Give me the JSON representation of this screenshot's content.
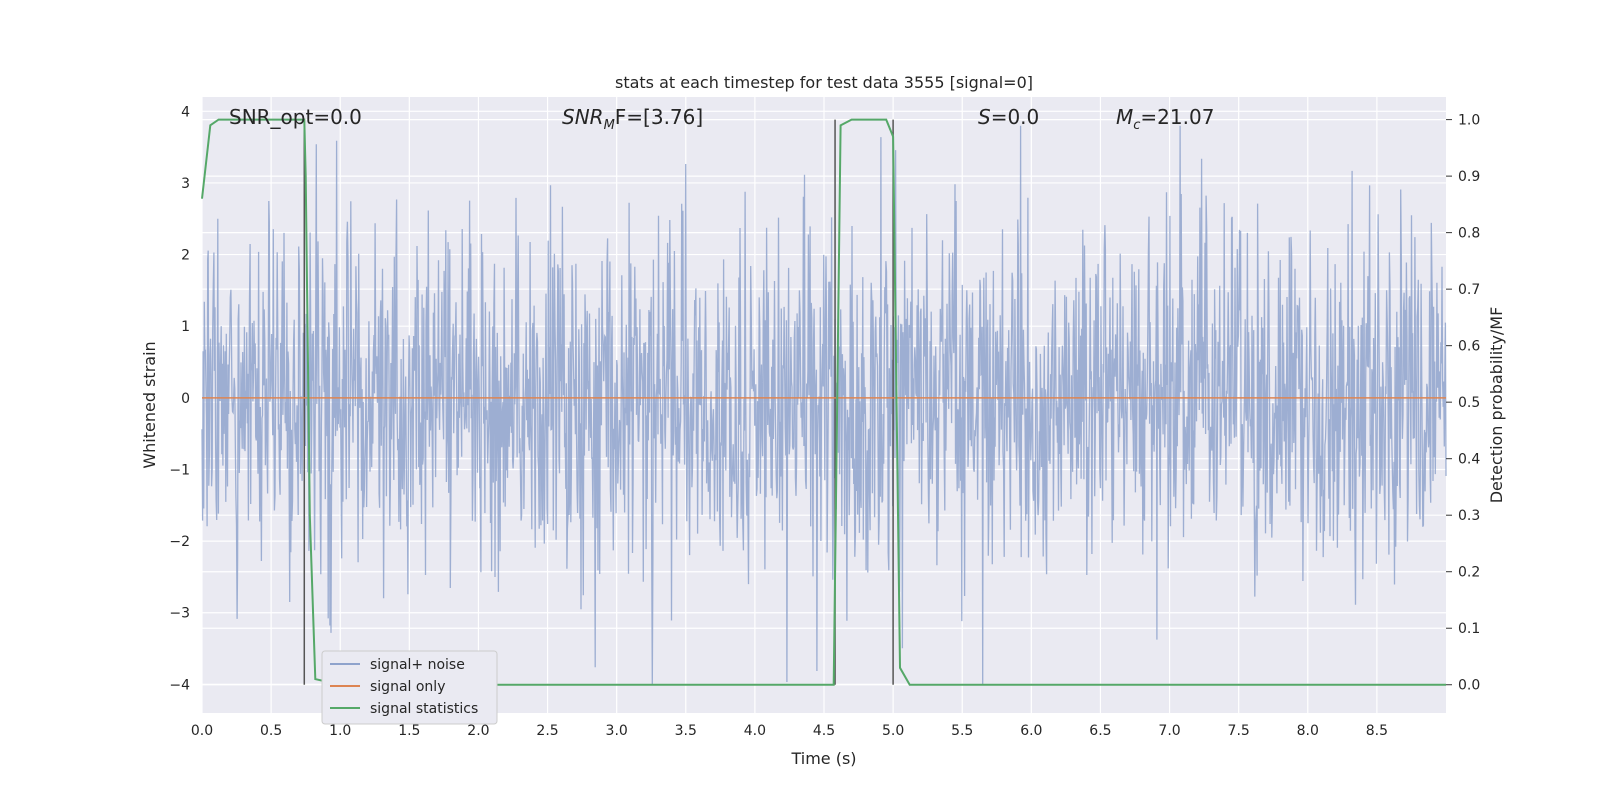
{
  "chart_data": {
    "type": "line",
    "title": "stats at each timestep for test data 3555 [signal=0]",
    "xlabel": "Time (s)",
    "ylabel_left": "Whitened strain",
    "ylabel_right": "Detection probability/MF",
    "xlim": [
      0.0,
      9.0
    ],
    "ylim_left": [
      -4.4,
      4.2
    ],
    "ylim_right": [
      -0.05,
      1.04
    ],
    "x_ticks": [
      "0.0",
      "0.5",
      "1.0",
      "1.5",
      "2.0",
      "2.5",
      "3.0",
      "3.5",
      "4.0",
      "4.5",
      "5.0",
      "5.5",
      "6.0",
      "6.5",
      "7.0",
      "7.5",
      "8.0",
      "8.5"
    ],
    "y_ticks_left": [
      "4",
      "3",
      "2",
      "1",
      "0",
      "−1",
      "−2",
      "−3",
      "−4"
    ],
    "y_ticks_right": [
      "1.0",
      "0.9",
      "0.8",
      "0.7",
      "0.6",
      "0.5",
      "0.4",
      "0.3",
      "0.2",
      "0.1",
      "0.0"
    ],
    "grid": true,
    "legend_position": "bottom-left",
    "annotations": {
      "snr_opt": "SNR_opt=0.0",
      "snr_mf_main": "SNR",
      "snr_mf_sub": "M",
      "snr_mf_rest": "F=[3.76]",
      "s_main": "S",
      "s_rest": "=0.0",
      "mc_main": "M",
      "mc_sub": "c",
      "mc_rest": "=21.07"
    },
    "vertical_markers": [
      0.74,
      4.58,
      5.0
    ],
    "series": [
      {
        "name": "signal+ noise",
        "color": "#8fa3cc",
        "axis": "left",
        "description_range": [
          -4.0,
          3.8
        ],
        "x": [
          0.0,
          9.0
        ]
      },
      {
        "name": "signal only",
        "color": "#dd8452",
        "axis": "left",
        "x": [
          0.0,
          9.0
        ],
        "y": [
          0.0,
          0.0
        ]
      },
      {
        "name": "signal statistics",
        "color": "#55a868",
        "axis": "right",
        "x": [
          0.0,
          0.06,
          0.12,
          0.5,
          0.74,
          0.75,
          0.78,
          0.82,
          1.0,
          2.0,
          2.3,
          3.0,
          4.0,
          4.5,
          4.57,
          4.62,
          4.7,
          4.95,
          5.0,
          5.05,
          5.12,
          6.0,
          7.0,
          8.0,
          9.0
        ],
        "y": [
          0.86,
          0.99,
          1.0,
          1.0,
          1.0,
          0.9,
          0.3,
          0.01,
          0.0,
          0.0,
          0.0,
          0.0,
          0.0,
          0.0,
          0.0,
          0.99,
          1.0,
          1.0,
          0.97,
          0.03,
          0.0,
          0.0,
          0.0,
          0.0,
          0.0
        ]
      }
    ]
  },
  "legend": {
    "items": [
      {
        "label": "signal+ noise",
        "color": "#8fa3cc"
      },
      {
        "label": "signal only",
        "color": "#dd8452"
      },
      {
        "label": "signal statistics",
        "color": "#55a868"
      }
    ]
  },
  "colors": {
    "plot_bg": "#eaeaf2",
    "grid": "#ffffff",
    "marker_line": "#555555"
  }
}
